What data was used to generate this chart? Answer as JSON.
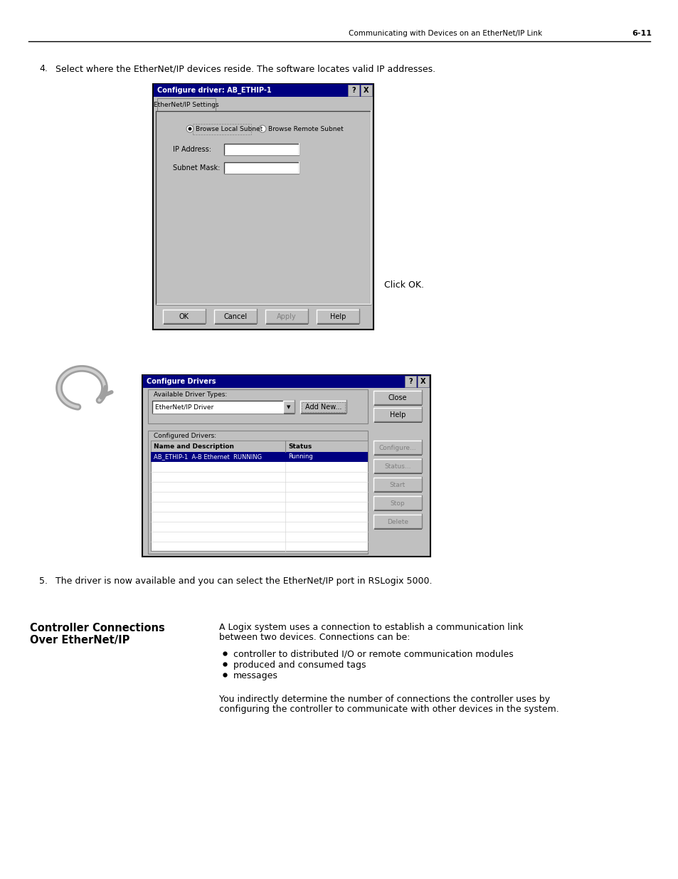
{
  "page_header_text": "Communicating with Devices on an EtherNet/IP Link",
  "page_number": "6-11",
  "step4_text": "Select where the EtherNet/IP devices reside. The software locates valid IP addresses.",
  "step5_text": "The driver is now available and you can select the EtherNet/IP port in RSLogix 5000.",
  "dialog1_title": "Configure driver: AB_ETHIP-1",
  "dialog1_tab": "EtherNet/IP Settings",
  "dialog1_radio1": "Browse Local Subnet",
  "dialog1_radio2": "Browse Remote Subnet",
  "dialog1_label1": "IP Address:",
  "dialog1_label2": "Subnet Mask:",
  "dialog1_btn1": "OK",
  "dialog1_btn2": "Cancel",
  "dialog1_btn3": "Apply",
  "dialog1_btn4": "Help",
  "click_ok_text": "Click OK.",
  "dialog2_title": "Configure Drivers",
  "dialog2_available_label": "Available Driver Types:",
  "dialog2_dropdown": "EtherNet/IP Driver",
  "dialog2_add_btn": "Add New...",
  "dialog2_close_btn": "Close",
  "dialog2_help_btn": "Help",
  "dialog2_configured_label": "Configured Drivers:",
  "dialog2_col1": "Name and Description",
  "dialog2_col2": "Status",
  "dialog2_row1_name": "AB_ETHIP-1  A-B Ethernet  RUNNING",
  "dialog2_row1_status": "Running",
  "dialog2_btn_configure": "Configure...",
  "dialog2_btn_status": "Status...",
  "dialog2_btn_start": "Start",
  "dialog2_btn_stop": "Stop",
  "dialog2_btn_delete": "Delete",
  "section_title_line1": "Controller Connections",
  "section_title_line2": "Over EtherNet/IP",
  "section_para1_l1": "A Logix system uses a connection to establish a communication link",
  "section_para1_l2": "between two devices. Connections can be:",
  "bullet1": "controller to distributed I/O or remote communication modules",
  "bullet2": "produced and consumed tags",
  "bullet3": "messages",
  "section_para2_l1": "You indirectly determine the number of connections the controller uses by",
  "section_para2_l2": "configuring the controller to communicate with other devices in the system.",
  "bg_color": "#ffffff",
  "dialog_bg": "#c0c0c0",
  "text_color": "#000000"
}
